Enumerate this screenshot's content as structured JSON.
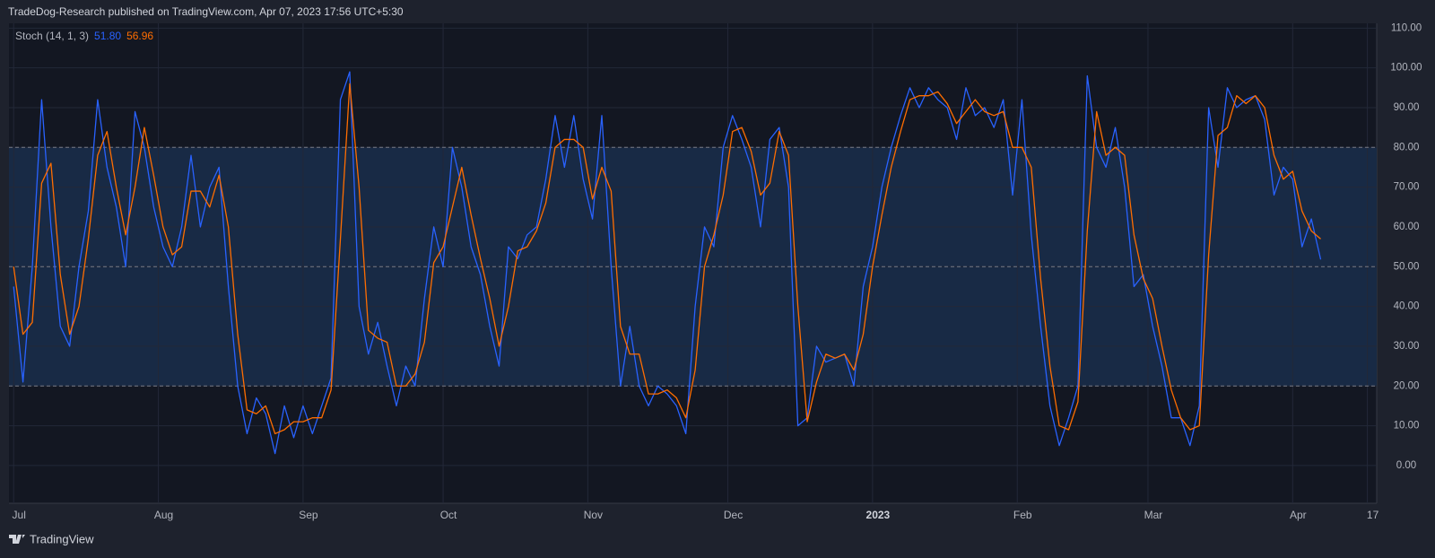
{
  "chart_data": {
    "type": "line",
    "title": "TradeDog-Research published on TradingView.com, Apr 07, 2023 17:56 UTC+5:30",
    "indicator_label": "Stoch (14, 1, 3)",
    "x": [
      0,
      2,
      4,
      6,
      8,
      10,
      12,
      14,
      16,
      18,
      20,
      22,
      24,
      26,
      28,
      30,
      32,
      34,
      36,
      38,
      40,
      42,
      44,
      46,
      48,
      50,
      52,
      54,
      56,
      58,
      60,
      62,
      64,
      66,
      68,
      70,
      72,
      74,
      76,
      78,
      80,
      82,
      84,
      86,
      88,
      90,
      92,
      94,
      96,
      98,
      100,
      102,
      104,
      106,
      108,
      110,
      112,
      114,
      116,
      118,
      120,
      122,
      124,
      126,
      128,
      130,
      132,
      134,
      136,
      138,
      140,
      142,
      144,
      146,
      148,
      150,
      152,
      154,
      156,
      158,
      160,
      162,
      164,
      166,
      168,
      170,
      172,
      174,
      176,
      178,
      180,
      182,
      184,
      186,
      188,
      190,
      192,
      194,
      196,
      198,
      200,
      202,
      204,
      206,
      208,
      210,
      212,
      214,
      216,
      218,
      220,
      222,
      224,
      226,
      228,
      230,
      232,
      234,
      236,
      238,
      240,
      242,
      244,
      246,
      248,
      250,
      252,
      254,
      256,
      258,
      260,
      262,
      264,
      266,
      268,
      270,
      272,
      274,
      276,
      278,
      280
    ],
    "series": [
      {
        "color": "#2962ff",
        "last_value_label": "51.80",
        "values": [
          45,
          21,
          50,
          92,
          60,
          35,
          30,
          50,
          64,
          92,
          75,
          65,
          50,
          89,
          80,
          65,
          55,
          50,
          60,
          78,
          60,
          70,
          75,
          45,
          20,
          8,
          17,
          13,
          3,
          15,
          7,
          15,
          8,
          15,
          22,
          92,
          99,
          40,
          28,
          36,
          25,
          15,
          25,
          20,
          42,
          60,
          50,
          80,
          70,
          55,
          48,
          35,
          25,
          55,
          52,
          58,
          60,
          72,
          88,
          75,
          88,
          72,
          62,
          88,
          50,
          20,
          35,
          20,
          15,
          20,
          18,
          15,
          8,
          40,
          60,
          55,
          80,
          88,
          82,
          75,
          60,
          82,
          85,
          70,
          10,
          12,
          30,
          26,
          27,
          28,
          20,
          45,
          55,
          70,
          80,
          88,
          95,
          90,
          95,
          92,
          90,
          82,
          95,
          88,
          90,
          85,
          92,
          68,
          92,
          58,
          35,
          15,
          5,
          12,
          20,
          98,
          80,
          75,
          85,
          70,
          45,
          48,
          35,
          25,
          12,
          12,
          5,
          15,
          90,
          75,
          95,
          90,
          92,
          93,
          87,
          68,
          75,
          72,
          55,
          62,
          51.8
        ]
      },
      {
        "color": "#ff6d00",
        "last_value_label": "56.96",
        "values": [
          50,
          33,
          36,
          71,
          76,
          48,
          33,
          40,
          57,
          78,
          84,
          70,
          58,
          70,
          85,
          73,
          60,
          53,
          55,
          69,
          69,
          65,
          73,
          60,
          33,
          14,
          13,
          15,
          8,
          9,
          11,
          11,
          12,
          12,
          19,
          57,
          96,
          70,
          34,
          32,
          31,
          20,
          20,
          23,
          31,
          51,
          55,
          65,
          75,
          63,
          52,
          42,
          30,
          40,
          54,
          55,
          59,
          66,
          80,
          82,
          82,
          80,
          67,
          75,
          69,
          35,
          28,
          28,
          18,
          18,
          19,
          17,
          12,
          24,
          50,
          58,
          68,
          84,
          85,
          79,
          68,
          71,
          84,
          78,
          40,
          11,
          21,
          28,
          27,
          28,
          24,
          33,
          50,
          63,
          75,
          84,
          92,
          93,
          93,
          94,
          91,
          86,
          89,
          92,
          89,
          88,
          89,
          80,
          80,
          75,
          47,
          25,
          10,
          9,
          16,
          59,
          89,
          78,
          80,
          78,
          58,
          47,
          42,
          30,
          19,
          12,
          9,
          10,
          53,
          83,
          85,
          93,
          91,
          93,
          90,
          78,
          72,
          74,
          64,
          59,
          56.96
        ]
      }
    ],
    "xlim": [
      -1,
      292
    ],
    "xticks": [
      {
        "value": 0,
        "label": "Jul"
      },
      {
        "value": 31,
        "label": "Aug"
      },
      {
        "value": 62,
        "label": "Sep"
      },
      {
        "value": 92,
        "label": "Oct"
      },
      {
        "value": 123,
        "label": "Nov"
      },
      {
        "value": 153,
        "label": "Dec"
      },
      {
        "value": 184,
        "label": "2023"
      },
      {
        "value": 215,
        "label": "Feb"
      },
      {
        "value": 243,
        "label": "Mar"
      },
      {
        "value": 274,
        "label": "Apr"
      },
      {
        "value": 290,
        "label": "17"
      }
    ],
    "ylim": [
      -9.5,
      111.2
    ],
    "yticks": [
      {
        "value": 0,
        "label": "0.00"
      },
      {
        "value": 10,
        "label": "10.00"
      },
      {
        "value": 20,
        "label": "20.00"
      },
      {
        "value": 30,
        "label": "30.00"
      },
      {
        "value": 40,
        "label": "40.00"
      },
      {
        "value": 50,
        "label": "50.00"
      },
      {
        "value": 60,
        "label": "60.00"
      },
      {
        "value": 70,
        "label": "70.00"
      },
      {
        "value": 80,
        "label": "80.00"
      },
      {
        "value": 90,
        "label": "90.00"
      },
      {
        "value": 100,
        "label": "100.00"
      },
      {
        "value": 110,
        "label": "110.00"
      }
    ],
    "bands": {
      "upper": 80,
      "middle": 50,
      "lower": 20,
      "fill": "#182a45"
    },
    "grid": true
  },
  "footer": {
    "brand": "TradingView"
  }
}
